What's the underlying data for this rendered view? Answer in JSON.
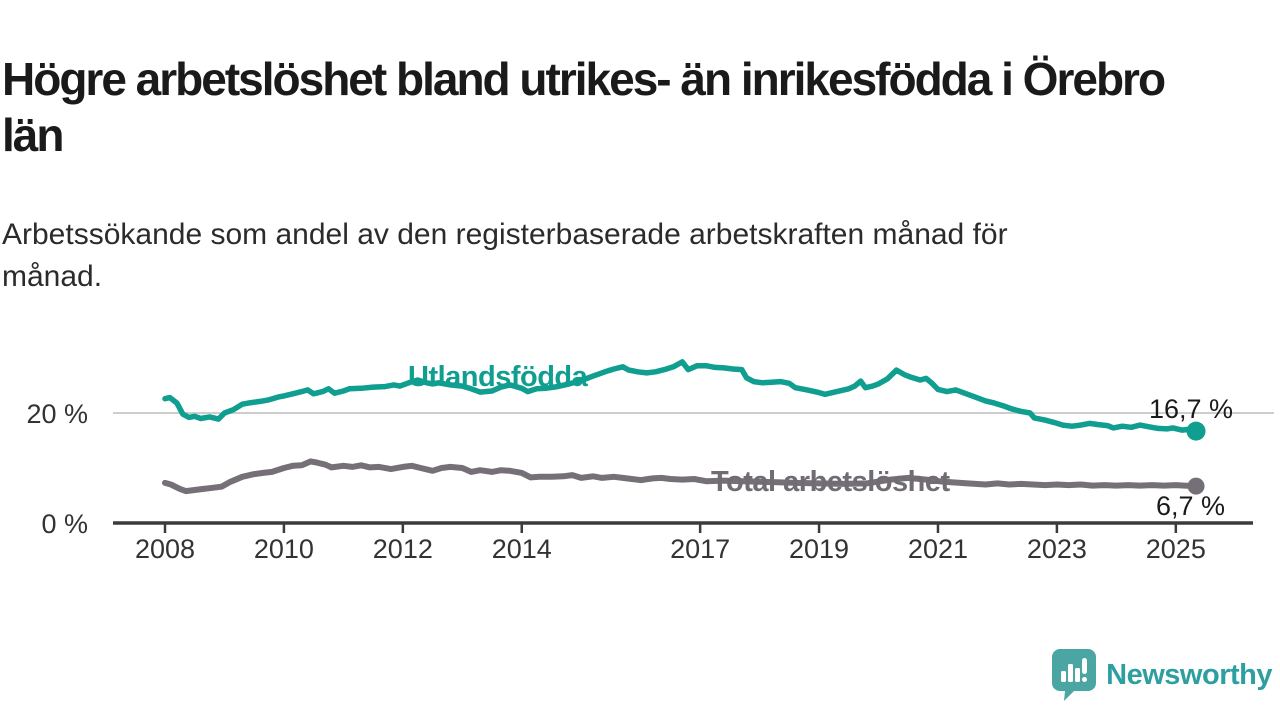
{
  "header": {
    "title": "Högre arbetslöshet bland utrikes- än inrikesfödda i Örebro län",
    "subtitle": "Arbetssökande som andel av den registerbaserade arbetskraften månad för månad."
  },
  "branding": {
    "logo_text": "Newsworthy",
    "logo_icon": "newsworthy-speech-bubble-bars-icon",
    "icon_color": "#4ba5a2",
    "text_color": "#2d9fa0"
  },
  "chart_data": {
    "type": "line",
    "title": "Högre arbetslöshet bland utrikes- än inrikesfödda i Örebro län",
    "subtitle": "Arbetssökande som andel av den registerbaserade arbetskraften månad för månad.",
    "x_axis": {
      "ticks": [
        2008,
        2010,
        2012,
        2014,
        2017,
        2019,
        2021,
        2023,
        2025
      ],
      "range": [
        2007.9,
        2025.4
      ]
    },
    "y_axis": {
      "labels": [
        "20 %",
        "0 %"
      ],
      "tick_values": [
        20,
        0
      ],
      "range": [
        0,
        31
      ],
      "gridlines": [
        20
      ]
    },
    "grid_color": "#cdcdcd",
    "axis_color": "#3b3b3b",
    "legend_position": "inline-labels",
    "series": [
      {
        "name": "Utlandsfödda",
        "color": "#0f9e90",
        "end_label": "16,7 %",
        "end_value": 16.7,
        "points": [
          [
            2008.0,
            22.6
          ],
          [
            2008.08,
            22.8
          ],
          [
            2008.2,
            21.8
          ],
          [
            2008.3,
            19.8
          ],
          [
            2008.4,
            19.2
          ],
          [
            2008.5,
            19.4
          ],
          [
            2008.6,
            19.0
          ],
          [
            2008.75,
            19.3
          ],
          [
            2008.9,
            18.9
          ],
          [
            2009.0,
            20.0
          ],
          [
            2009.15,
            20.6
          ],
          [
            2009.3,
            21.6
          ],
          [
            2009.45,
            21.9
          ],
          [
            2009.6,
            22.1
          ],
          [
            2009.75,
            22.4
          ],
          [
            2009.9,
            22.9
          ],
          [
            2010.0,
            23.1
          ],
          [
            2010.15,
            23.5
          ],
          [
            2010.3,
            23.9
          ],
          [
            2010.4,
            24.2
          ],
          [
            2010.5,
            23.5
          ],
          [
            2010.65,
            23.9
          ],
          [
            2010.75,
            24.4
          ],
          [
            2010.85,
            23.6
          ],
          [
            2011.0,
            24.0
          ],
          [
            2011.1,
            24.4
          ],
          [
            2011.3,
            24.5
          ],
          [
            2011.5,
            24.7
          ],
          [
            2011.7,
            24.8
          ],
          [
            2011.85,
            25.1
          ],
          [
            2011.95,
            24.9
          ],
          [
            2012.1,
            25.5
          ],
          [
            2012.25,
            26.0
          ],
          [
            2012.4,
            25.5
          ],
          [
            2012.5,
            25.3
          ],
          [
            2012.6,
            25.5
          ],
          [
            2012.8,
            25.1
          ],
          [
            2013.0,
            24.9
          ],
          [
            2013.15,
            24.4
          ],
          [
            2013.3,
            23.8
          ],
          [
            2013.5,
            24.0
          ],
          [
            2013.65,
            24.7
          ],
          [
            2013.8,
            25.1
          ],
          [
            2014.0,
            24.5
          ],
          [
            2014.1,
            23.9
          ],
          [
            2014.25,
            24.4
          ],
          [
            2014.4,
            24.5
          ],
          [
            2014.6,
            24.8
          ],
          [
            2014.8,
            25.3
          ],
          [
            2015.0,
            25.9
          ],
          [
            2015.2,
            26.7
          ],
          [
            2015.4,
            27.5
          ],
          [
            2015.55,
            28.0
          ],
          [
            2015.7,
            28.4
          ],
          [
            2015.8,
            27.8
          ],
          [
            2015.95,
            27.5
          ],
          [
            2016.1,
            27.3
          ],
          [
            2016.25,
            27.5
          ],
          [
            2016.4,
            27.9
          ],
          [
            2016.55,
            28.4
          ],
          [
            2016.7,
            29.3
          ],
          [
            2016.8,
            27.9
          ],
          [
            2016.95,
            28.6
          ],
          [
            2017.1,
            28.6
          ],
          [
            2017.25,
            28.3
          ],
          [
            2017.4,
            28.2
          ],
          [
            2017.55,
            28.0
          ],
          [
            2017.7,
            27.9
          ],
          [
            2017.78,
            26.4
          ],
          [
            2017.9,
            25.7
          ],
          [
            2018.05,
            25.5
          ],
          [
            2018.2,
            25.6
          ],
          [
            2018.35,
            25.7
          ],
          [
            2018.5,
            25.4
          ],
          [
            2018.6,
            24.6
          ],
          [
            2018.8,
            24.2
          ],
          [
            2019.0,
            23.7
          ],
          [
            2019.1,
            23.4
          ],
          [
            2019.3,
            23.9
          ],
          [
            2019.5,
            24.4
          ],
          [
            2019.6,
            24.9
          ],
          [
            2019.7,
            25.8
          ],
          [
            2019.78,
            24.6
          ],
          [
            2019.9,
            24.9
          ],
          [
            2020.0,
            25.3
          ],
          [
            2020.15,
            26.2
          ],
          [
            2020.3,
            27.8
          ],
          [
            2020.45,
            26.9
          ],
          [
            2020.55,
            26.5
          ],
          [
            2020.7,
            26.0
          ],
          [
            2020.8,
            26.3
          ],
          [
            2020.9,
            25.4
          ],
          [
            2021.0,
            24.3
          ],
          [
            2021.15,
            23.9
          ],
          [
            2021.3,
            24.2
          ],
          [
            2021.5,
            23.4
          ],
          [
            2021.65,
            22.8
          ],
          [
            2021.8,
            22.2
          ],
          [
            2021.95,
            21.8
          ],
          [
            2022.1,
            21.3
          ],
          [
            2022.25,
            20.7
          ],
          [
            2022.4,
            20.3
          ],
          [
            2022.55,
            20.0
          ],
          [
            2022.62,
            19.1
          ],
          [
            2022.8,
            18.7
          ],
          [
            2022.95,
            18.3
          ],
          [
            2023.1,
            17.8
          ],
          [
            2023.25,
            17.6
          ],
          [
            2023.4,
            17.8
          ],
          [
            2023.55,
            18.1
          ],
          [
            2023.7,
            17.9
          ],
          [
            2023.85,
            17.7
          ],
          [
            2023.95,
            17.3
          ],
          [
            2024.1,
            17.6
          ],
          [
            2024.25,
            17.4
          ],
          [
            2024.4,
            17.8
          ],
          [
            2024.55,
            17.5
          ],
          [
            2024.7,
            17.2
          ],
          [
            2024.85,
            17.1
          ],
          [
            2024.95,
            17.3
          ],
          [
            2025.1,
            16.9
          ],
          [
            2025.2,
            17.0
          ],
          [
            2025.34,
            16.7
          ]
        ]
      },
      {
        "name": "Total arbetslöshet",
        "color": "#757077",
        "end_label": "6,7 %",
        "end_value": 6.7,
        "points": [
          [
            2008.0,
            7.3
          ],
          [
            2008.1,
            7.0
          ],
          [
            2008.25,
            6.2
          ],
          [
            2008.35,
            5.8
          ],
          [
            2008.5,
            6.0
          ],
          [
            2008.65,
            6.2
          ],
          [
            2008.8,
            6.4
          ],
          [
            2008.95,
            6.6
          ],
          [
            2009.1,
            7.5
          ],
          [
            2009.3,
            8.4
          ],
          [
            2009.5,
            8.9
          ],
          [
            2009.65,
            9.1
          ],
          [
            2009.8,
            9.3
          ],
          [
            2010.0,
            10.0
          ],
          [
            2010.15,
            10.4
          ],
          [
            2010.3,
            10.5
          ],
          [
            2010.45,
            11.2
          ],
          [
            2010.55,
            11.0
          ],
          [
            2010.7,
            10.6
          ],
          [
            2010.8,
            10.1
          ],
          [
            2011.0,
            10.4
          ],
          [
            2011.15,
            10.2
          ],
          [
            2011.3,
            10.5
          ],
          [
            2011.45,
            10.1
          ],
          [
            2011.6,
            10.2
          ],
          [
            2011.8,
            9.8
          ],
          [
            2012.0,
            10.2
          ],
          [
            2012.15,
            10.4
          ],
          [
            2012.3,
            10.0
          ],
          [
            2012.5,
            9.5
          ],
          [
            2012.65,
            10.0
          ],
          [
            2012.8,
            10.2
          ],
          [
            2013.0,
            10.0
          ],
          [
            2013.15,
            9.3
          ],
          [
            2013.3,
            9.6
          ],
          [
            2013.5,
            9.3
          ],
          [
            2013.65,
            9.6
          ],
          [
            2013.8,
            9.5
          ],
          [
            2014.0,
            9.1
          ],
          [
            2014.15,
            8.3
          ],
          [
            2014.3,
            8.4
          ],
          [
            2014.5,
            8.4
          ],
          [
            2014.7,
            8.5
          ],
          [
            2014.85,
            8.7
          ],
          [
            2015.0,
            8.2
          ],
          [
            2015.2,
            8.5
          ],
          [
            2015.35,
            8.2
          ],
          [
            2015.55,
            8.4
          ],
          [
            2015.7,
            8.2
          ],
          [
            2015.85,
            8.0
          ],
          [
            2016.0,
            7.8
          ],
          [
            2016.2,
            8.1
          ],
          [
            2016.35,
            8.2
          ],
          [
            2016.5,
            8.0
          ],
          [
            2016.7,
            7.9
          ],
          [
            2016.9,
            8.0
          ],
          [
            2017.1,
            7.6
          ],
          [
            2017.4,
            7.7
          ],
          [
            2017.7,
            7.6
          ],
          [
            2018.0,
            7.5
          ],
          [
            2018.3,
            7.4
          ],
          [
            2018.6,
            7.3
          ],
          [
            2019.0,
            7.2
          ],
          [
            2019.4,
            7.1
          ],
          [
            2019.8,
            7.2
          ],
          [
            2020.2,
            7.9
          ],
          [
            2020.5,
            8.2
          ],
          [
            2020.8,
            7.9
          ],
          [
            2021.1,
            7.5
          ],
          [
            2021.5,
            7.2
          ],
          [
            2021.8,
            7.0
          ],
          [
            2022.0,
            7.2
          ],
          [
            2022.2,
            7.0
          ],
          [
            2022.4,
            7.1
          ],
          [
            2022.6,
            7.0
          ],
          [
            2022.8,
            6.9
          ],
          [
            2023.0,
            7.0
          ],
          [
            2023.2,
            6.9
          ],
          [
            2023.4,
            7.0
          ],
          [
            2023.6,
            6.8
          ],
          [
            2023.8,
            6.9
          ],
          [
            2024.0,
            6.8
          ],
          [
            2024.2,
            6.9
          ],
          [
            2024.4,
            6.8
          ],
          [
            2024.6,
            6.9
          ],
          [
            2024.8,
            6.8
          ],
          [
            2025.0,
            6.9
          ],
          [
            2025.15,
            6.8
          ],
          [
            2025.34,
            6.7
          ]
        ]
      }
    ]
  }
}
